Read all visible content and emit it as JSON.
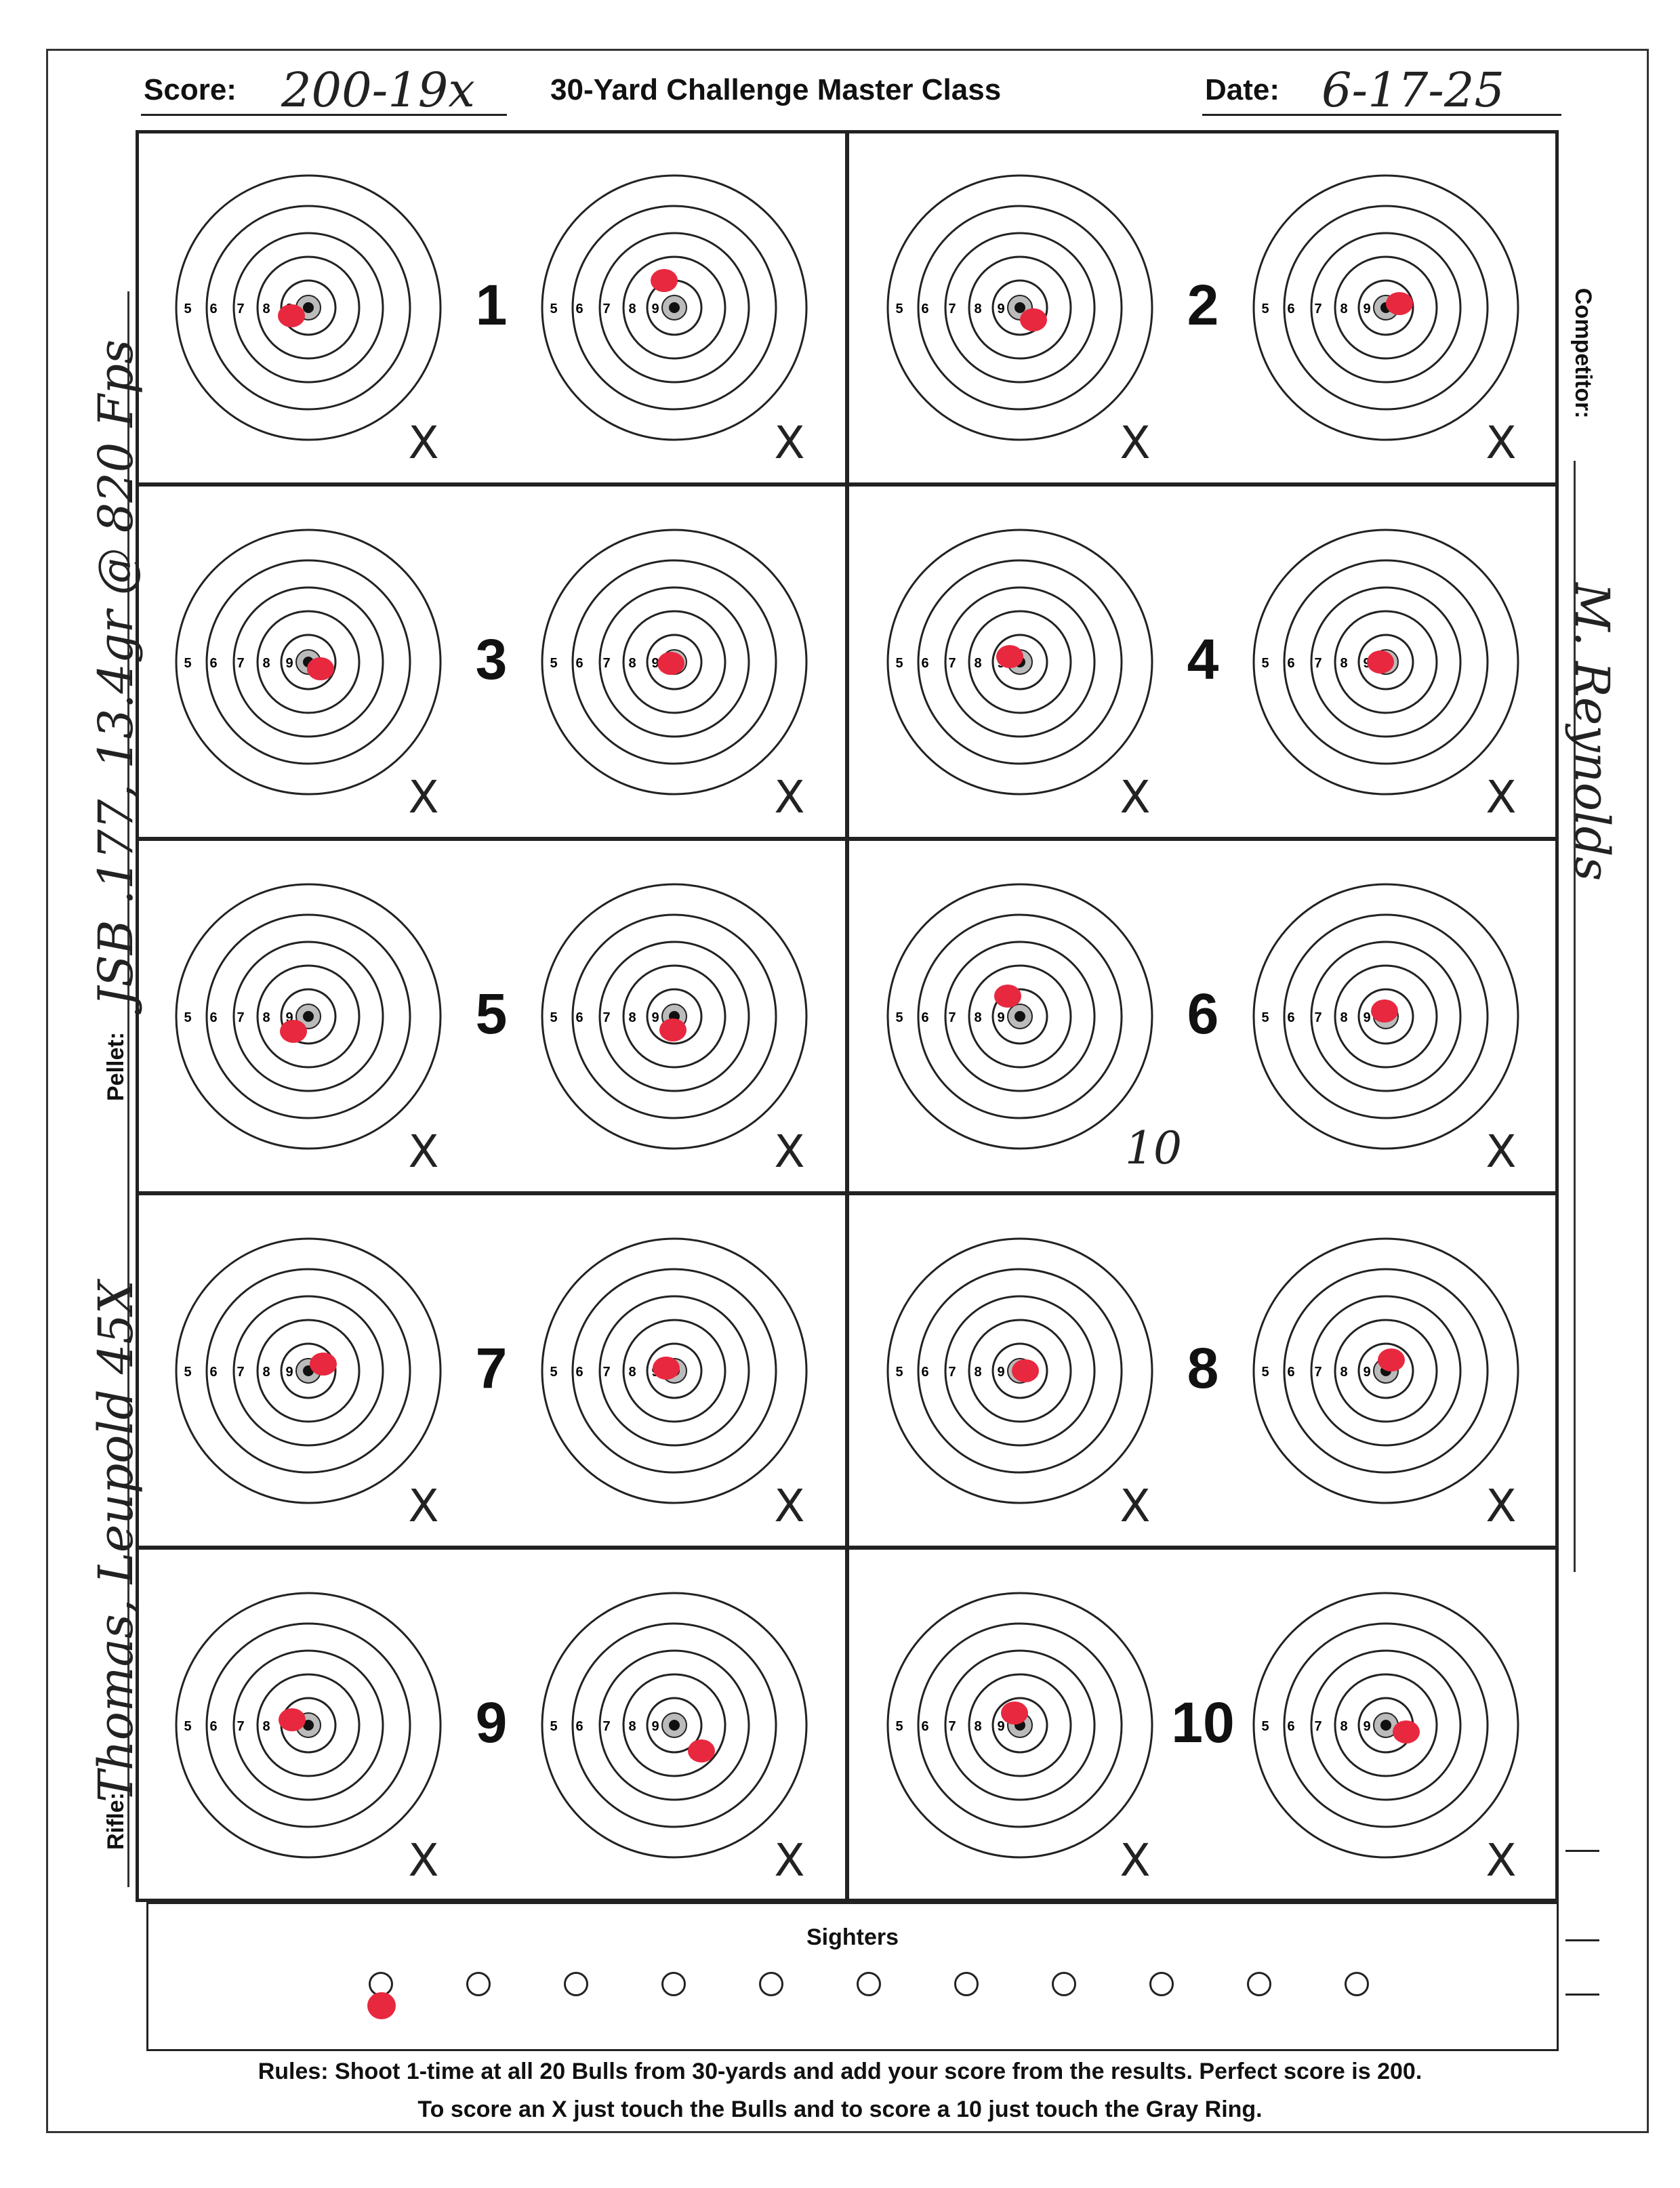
{
  "header": {
    "score_label": "Score:",
    "score_value": "200-19x",
    "title": "30-Yard Challenge Master Class",
    "date_label": "Date:",
    "date_value": "6-17-25"
  },
  "ring_labels": [
    "5",
    "6",
    "7",
    "8",
    "9"
  ],
  "targets": [
    {
      "number": "1",
      "marks": [
        "X",
        "X"
      ],
      "note": ""
    },
    {
      "number": "2",
      "marks": [
        "X",
        "X"
      ],
      "note": ""
    },
    {
      "number": "3",
      "marks": [
        "X",
        "X"
      ],
      "note": ""
    },
    {
      "number": "4",
      "marks": [
        "X",
        "X"
      ],
      "note": ""
    },
    {
      "number": "5",
      "marks": [
        "X",
        "X"
      ],
      "note": ""
    },
    {
      "number": "6",
      "marks": [
        "",
        "X"
      ],
      "note": "10"
    },
    {
      "number": "7",
      "marks": [
        "X",
        "X"
      ],
      "note": ""
    },
    {
      "number": "8",
      "marks": [
        "X",
        "X"
      ],
      "note": ""
    },
    {
      "number": "9",
      "marks": [
        "X",
        "X"
      ],
      "note": ""
    },
    {
      "number": "10",
      "marks": [
        "X",
        "X"
      ],
      "note": ""
    }
  ],
  "sighters": {
    "label": "Sighters",
    "count": 11
  },
  "left_side": {
    "rifle_label": "Rifle:",
    "rifle_value": "Thomas, Leupold 45X",
    "pellet_label": "Pellet:",
    "pellet_value": "JSB .177, 13.4gr @ 820 Fps"
  },
  "right_side": {
    "competitor_label": "Competitor:",
    "competitor_value": "M. Reynolds"
  },
  "rules": {
    "line1": "Rules: Shoot 1-time at all 20 Bulls from 30-yards and add your score from the results. Perfect score is 200.",
    "line2": "To score an X just touch the Bulls and to score a 10 just touch the Gray Ring."
  },
  "colors": {
    "shot": "#e8283f",
    "ink": "#222222",
    "gray_ring": "#bbbbbb"
  }
}
